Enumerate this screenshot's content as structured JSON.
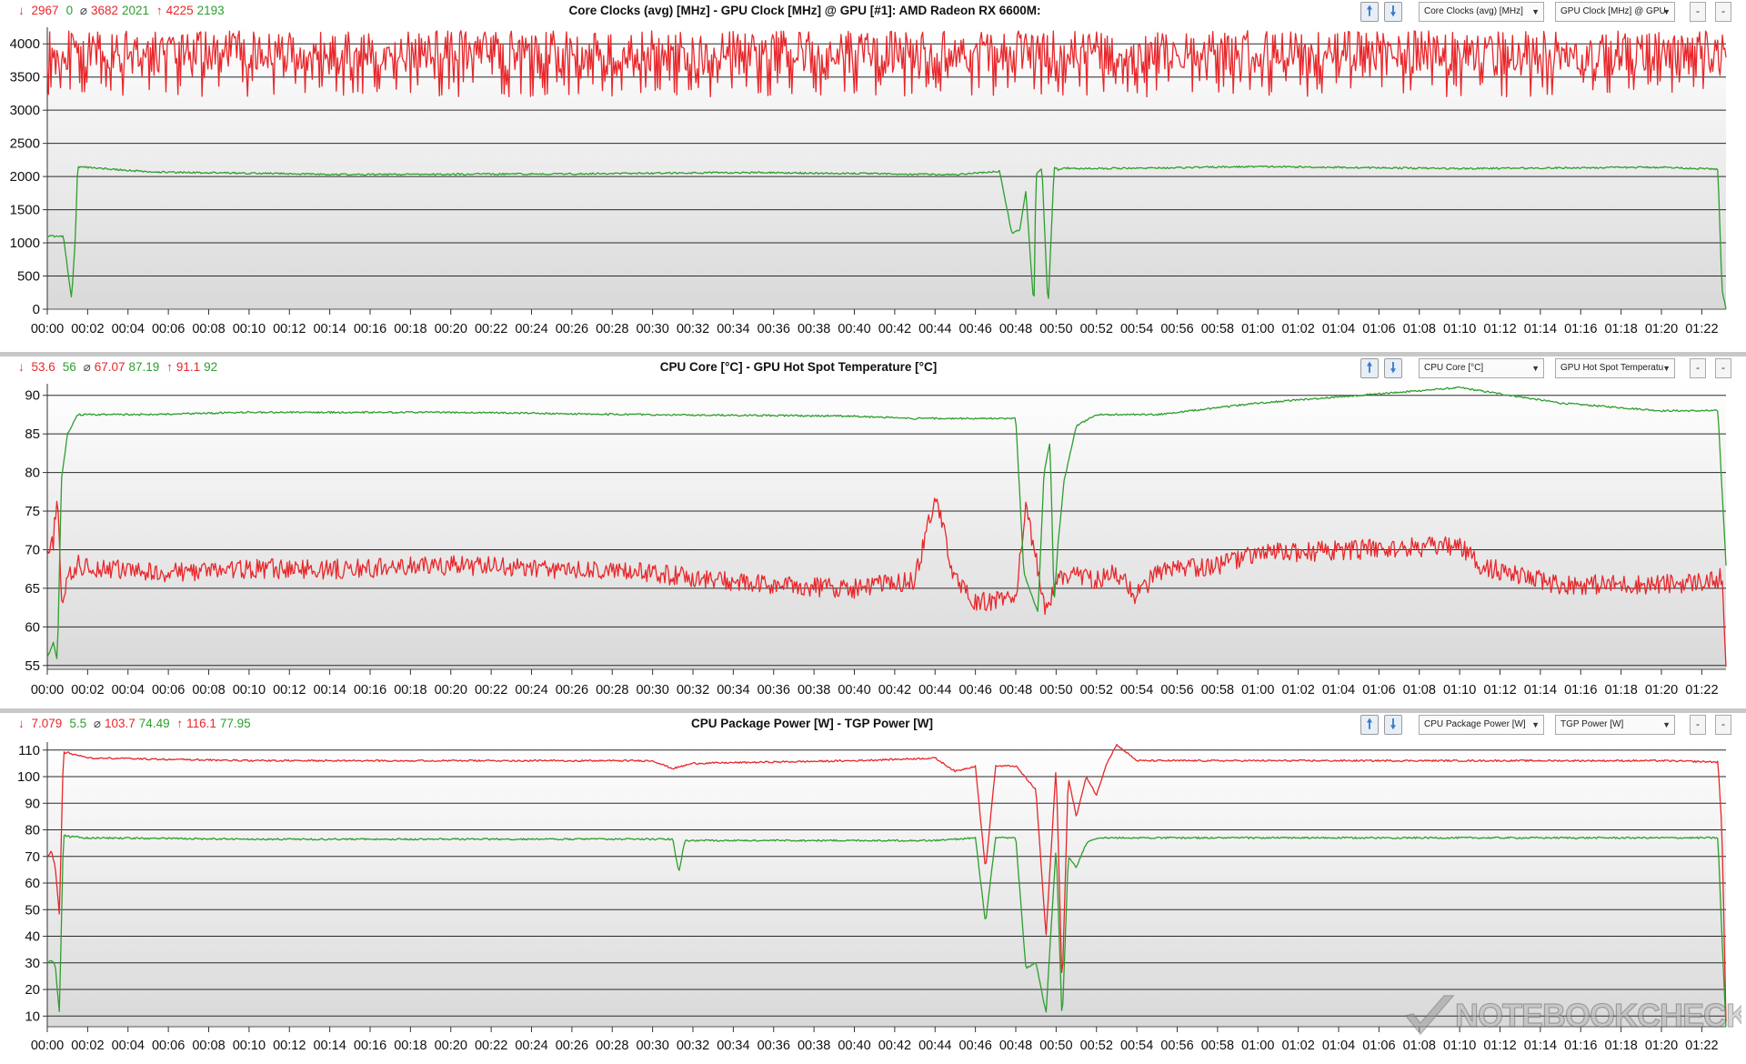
{
  "panels": [
    {
      "title": "Core Clocks (avg) [MHz]  -  GPU Clock [MHz] @ GPU [#1]: AMD Radeon RX 6600M:",
      "stats": {
        "min_red": "2967",
        "min_green": "0",
        "avg_red": "3682",
        "avg_green": "2021",
        "max_red": "4225",
        "max_green": "2193"
      },
      "select_1": "Core Clocks (avg) [MHz]",
      "select_2": "GPU Clock [MHz] @ GPU"
    },
    {
      "title": "CPU Core [°C]  -  GPU Hot Spot Temperature [°C]",
      "stats": {
        "min_red": "53.6",
        "min_green": "56",
        "avg_red": "67.07",
        "avg_green": "87.19",
        "max_red": "91.1",
        "max_green": "92"
      },
      "select_1": "CPU Core [°C]",
      "select_2": "GPU Hot Spot Temperatu"
    },
    {
      "title": "CPU Package Power [W]  -  TGP Power [W]",
      "stats": {
        "min_red": "7.079",
        "min_green": "5.5",
        "avg_red": "103.7",
        "avg_green": "74.49",
        "max_red": "116.1",
        "max_green": "77.95"
      },
      "select_1": "CPU Package Power [W]",
      "select_2": "TGP Power [W]"
    }
  ],
  "symbols": {
    "min": "↓",
    "avg": "⌀",
    "max": "↑",
    "up": "🠕",
    "down": "🠗",
    "minus": "-",
    "chev": "▼"
  },
  "watermark": "NOTEBOOKCHECK",
  "colors": {
    "red_series": "#e8272b",
    "green_series": "#2e9e2e"
  },
  "chart_data": [
    {
      "type": "line",
      "xlim": [
        "00:00",
        "01:23"
      ],
      "x_ticks": [
        "00:00",
        "00:02",
        "00:04",
        "00:06",
        "00:08",
        "00:10",
        "00:12",
        "00:14",
        "00:16",
        "00:18",
        "00:20",
        "00:22",
        "00:24",
        "00:26",
        "00:28",
        "00:30",
        "00:32",
        "00:34",
        "00:36",
        "00:38",
        "00:40",
        "00:42",
        "00:44",
        "00:46",
        "00:48",
        "00:50",
        "00:52",
        "00:54",
        "00:56",
        "00:58",
        "01:00",
        "01:02",
        "01:04",
        "01:06",
        "01:08",
        "01:10",
        "01:12",
        "01:14",
        "01:16",
        "01:18",
        "01:20",
        "01:22"
      ],
      "y_ticks": [
        "0",
        "500",
        "1000",
        "1500",
        "2000",
        "2500",
        "3000",
        "3500",
        "4000"
      ],
      "ylim": [
        0,
        4250
      ],
      "series": [
        {
          "color": "#e8272b",
          "pattern": "noise",
          "noise": [
            3200,
            4200
          ],
          "x": [
            0,
            83.2
          ],
          "y": [
            3700,
            3700
          ]
        },
        {
          "color": "#2e9e2e",
          "pattern": "steady",
          "x": [
            0,
            0.8,
            1.2,
            1.4,
            1.5,
            5,
            15,
            25,
            35,
            45,
            47.2,
            47.8,
            48.2,
            48.5,
            48.9,
            49.0,
            49.3,
            49.6,
            49.9,
            50.1,
            50.4,
            51,
            55,
            60,
            70,
            80,
            82.8,
            83.0,
            83.2
          ],
          "y": [
            1100,
            1100,
            150,
            1100,
            2150,
            2070,
            2030,
            2040,
            2060,
            2030,
            2080,
            1150,
            1200,
            1780,
            0,
            2030,
            2120,
            0,
            2150,
            2100,
            2130,
            2120,
            2130,
            2150,
            2120,
            2140,
            2110,
            300,
            0
          ]
        }
      ]
    },
    {
      "type": "line",
      "xlim": [
        "00:00",
        "01:23"
      ],
      "x_ticks": [
        "00:00",
        "00:02",
        "00:04",
        "00:06",
        "00:08",
        "00:10",
        "00:12",
        "00:14",
        "00:16",
        "00:18",
        "00:20",
        "00:22",
        "00:24",
        "00:26",
        "00:28",
        "00:30",
        "00:32",
        "00:34",
        "00:36",
        "00:38",
        "00:40",
        "00:42",
        "00:44",
        "00:46",
        "00:48",
        "00:50",
        "00:52",
        "00:54",
        "00:56",
        "00:58",
        "01:00",
        "01:02",
        "01:04",
        "01:06",
        "01:08",
        "01:10",
        "01:12",
        "01:14",
        "01:16",
        "01:18",
        "01:20",
        "01:22"
      ],
      "y_ticks": [
        "55",
        "60",
        "65",
        "70",
        "75",
        "80",
        "85",
        "90"
      ],
      "ylim": [
        54.5,
        91.5
      ],
      "series": [
        {
          "color": "#e8272b",
          "pattern": "noise",
          "x": [
            0,
            0.3,
            0.5,
            0.7,
            1.0,
            1.5,
            5,
            10,
            15,
            20,
            25,
            30,
            35,
            40,
            43,
            44,
            45,
            46,
            47,
            48,
            48.5,
            49,
            49.5,
            50,
            51,
            52,
            53,
            54,
            55,
            58,
            60,
            65,
            70,
            71,
            73,
            75,
            80,
            82.8,
            83.0,
            83.2
          ],
          "y": [
            69,
            71,
            78,
            63,
            66,
            68,
            67,
            67.5,
            67.5,
            68,
            67.5,
            67,
            65.5,
            65,
            66,
            77,
            66,
            63,
            63.5,
            64,
            75,
            69,
            62,
            66,
            67,
            66,
            67,
            64,
            67,
            68,
            69.5,
            70,
            70.5,
            68,
            66.5,
            65.5,
            65.5,
            66,
            66.5,
            54
          ]
        },
        {
          "color": "#2e9e2e",
          "pattern": "steady",
          "x": [
            0,
            0.3,
            0.5,
            0.7,
            1.0,
            1.5,
            5,
            10,
            20,
            30,
            40,
            43,
            46,
            48.0,
            48.4,
            48.8,
            49.1,
            49.4,
            49.7,
            49.9,
            50.1,
            50.4,
            51,
            52,
            55,
            60,
            65,
            70,
            75,
            80,
            82.8,
            83.0,
            83.2
          ],
          "y": [
            56,
            58,
            55.5,
            79,
            85,
            87.5,
            87.5,
            87.8,
            87.8,
            87.5,
            87.3,
            87,
            87,
            87,
            67,
            64,
            62,
            80,
            84,
            63,
            71,
            79,
            86,
            87.5,
            87.5,
            89,
            90,
            91,
            89,
            88,
            88,
            78,
            68
          ]
        }
      ]
    },
    {
      "type": "line",
      "xlim": [
        "00:00",
        "01:23"
      ],
      "x_ticks": [
        "00:00",
        "00:02",
        "00:04",
        "00:06",
        "00:08",
        "00:10",
        "00:12",
        "00:14",
        "00:16",
        "00:18",
        "00:20",
        "00:22",
        "00:24",
        "00:26",
        "00:28",
        "00:30",
        "00:32",
        "00:34",
        "00:36",
        "00:38",
        "00:40",
        "00:42",
        "00:44",
        "00:46",
        "00:48",
        "00:50",
        "00:52",
        "00:54",
        "00:56",
        "00:58",
        "01:00",
        "01:02",
        "01:04",
        "01:06",
        "01:08",
        "01:10",
        "01:12",
        "01:14",
        "01:16",
        "01:18",
        "01:20",
        "01:22"
      ],
      "y_ticks": [
        "10",
        "20",
        "30",
        "40",
        "50",
        "60",
        "70",
        "80",
        "90",
        "100",
        "110"
      ],
      "ylim": [
        6,
        113
      ],
      "series": [
        {
          "color": "#e8272b",
          "pattern": "steady",
          "x": [
            0,
            0.2,
            0.4,
            0.6,
            0.8,
            1.0,
            2,
            10,
            20,
            30,
            31,
            32,
            40,
            44,
            45,
            46,
            46.5,
            47,
            48,
            49,
            49.5,
            50,
            50.3,
            50.6,
            51,
            51.5,
            52,
            52.5,
            53,
            54,
            55,
            60,
            70,
            80,
            82.8,
            83.0,
            83.2
          ],
          "y": [
            70,
            72,
            66,
            48,
            109,
            109,
            107,
            106,
            106,
            106,
            103,
            105,
            106,
            107,
            102,
            104,
            65,
            104,
            104,
            95,
            40,
            104,
            20,
            100,
            85,
            100,
            93,
            105,
            112,
            106,
            106,
            106,
            106,
            106,
            105.5,
            80,
            8
          ]
        },
        {
          "color": "#2e9e2e",
          "pattern": "steady",
          "x": [
            0,
            0.2,
            0.4,
            0.6,
            0.8,
            1.0,
            2,
            10,
            20,
            30,
            31,
            31.3,
            31.6,
            40,
            44,
            46,
            46.5,
            47,
            48,
            48.5,
            49,
            49.5,
            50,
            50.3,
            50.6,
            51,
            51.5,
            52,
            55,
            60,
            70,
            80,
            82.8,
            83.0,
            83.2
          ],
          "y": [
            30,
            31,
            29,
            11,
            78,
            77.5,
            77,
            76.5,
            76.5,
            76.5,
            76.5,
            64,
            76,
            76,
            76,
            77,
            45,
            77,
            77,
            28,
            30,
            11,
            74,
            7,
            70,
            66,
            75,
            77,
            77,
            77,
            77,
            77,
            77,
            40,
            5
          ]
        }
      ]
    }
  ]
}
